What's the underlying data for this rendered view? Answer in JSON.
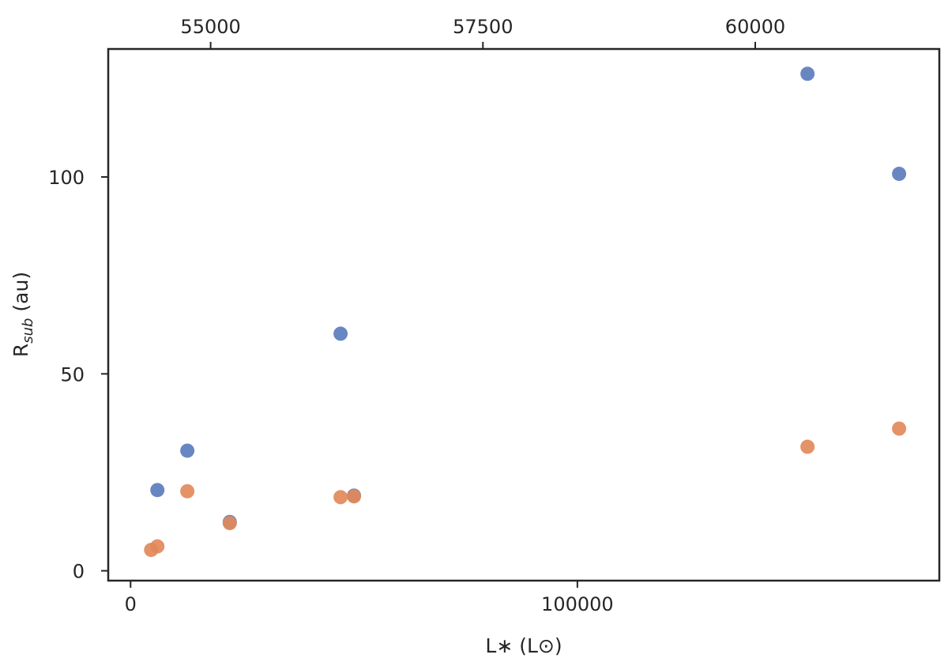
{
  "chart_data": {
    "type": "scatter",
    "title": "",
    "xlabel": "L∗ (L⊙)",
    "ylabel": {
      "base": "R",
      "sub": "sub",
      "unit": " (au)"
    },
    "bottom_axis": {
      "xlim": [
        -5000,
        181000
      ],
      "ticks": [
        0,
        100000
      ],
      "tick_labels": [
        "0",
        "100000"
      ]
    },
    "top_axis": {
      "xlim": [
        54060,
        61690
      ],
      "ticks": [
        55000,
        57500,
        60000
      ],
      "tick_labels": [
        "55000",
        "57500",
        "60000"
      ]
    },
    "ylim": [
      -2.5,
      132.5
    ],
    "yticks": [
      0,
      50,
      100
    ],
    "ytick_labels": [
      "0",
      "50",
      "100"
    ],
    "grid": false,
    "series": [
      {
        "color": "#5b7dbd",
        "points": [
          {
            "x": 6000,
            "y": 20.5
          },
          {
            "x": 12700,
            "y": 30.5
          },
          {
            "x": 22200,
            "y": 12.4
          },
          {
            "x": 47000,
            "y": 60.2
          },
          {
            "x": 50000,
            "y": 19.1
          },
          {
            "x": 151500,
            "y": 126.2
          },
          {
            "x": 172000,
            "y": 100.8
          }
        ]
      },
      {
        "color": "#e2895a",
        "points": [
          {
            "x": 4600,
            "y": 5.3
          },
          {
            "x": 6000,
            "y": 6.2
          },
          {
            "x": 12700,
            "y": 20.2
          },
          {
            "x": 22200,
            "y": 12.1
          },
          {
            "x": 47000,
            "y": 18.7
          },
          {
            "x": 50000,
            "y": 18.9
          },
          {
            "x": 151500,
            "y": 31.5
          },
          {
            "x": 172000,
            "y": 36.1
          }
        ]
      }
    ]
  }
}
